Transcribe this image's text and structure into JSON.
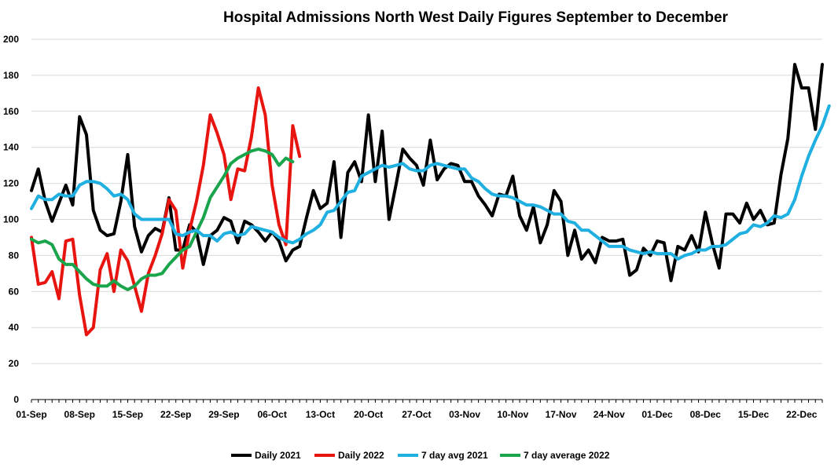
{
  "chart_data": {
    "type": "line",
    "title": "Hospital Admissions North West Daily Figures September to December",
    "ylim": [
      0,
      200
    ],
    "yticks": [
      0,
      20,
      40,
      60,
      80,
      100,
      120,
      140,
      160,
      180,
      200
    ],
    "xlim": [
      0,
      115
    ],
    "xtick_labels": [
      "01-Sep",
      "08-Sep",
      "15-Sep",
      "22-Sep",
      "29-Sep",
      "06-Oct",
      "13-Oct",
      "20-Oct",
      "27-Oct",
      "03-Nov",
      "10-Nov",
      "17-Nov",
      "24-Nov",
      "01-Dec",
      "08-Dec",
      "15-Dec",
      "22-Dec"
    ],
    "grid": "horizontal",
    "legend": "bottom",
    "series": [
      {
        "name": "Daily 2021",
        "color": "#000000",
        "start": 0,
        "values": [
          116,
          128,
          110,
          99,
          109,
          119,
          108,
          157,
          147,
          105,
          94,
          91,
          92,
          110,
          136,
          96,
          82,
          91,
          95,
          93,
          112,
          83,
          83,
          97,
          93,
          75,
          91,
          94,
          101,
          99,
          87,
          99,
          97,
          93,
          88,
          93,
          88,
          77,
          83,
          85,
          101,
          116,
          106,
          109,
          132,
          90,
          126,
          132,
          121,
          158,
          121,
          149,
          100,
          119,
          139,
          134,
          130,
          119,
          144,
          122,
          128,
          131,
          130,
          121,
          121,
          113,
          108,
          102,
          114,
          113,
          124,
          102,
          94,
          107,
          87,
          97,
          116,
          110,
          80,
          94,
          78,
          83,
          76,
          90,
          88,
          88,
          89,
          69,
          72,
          84,
          80,
          88,
          87,
          66,
          85,
          83,
          91,
          82,
          104,
          87,
          73,
          103,
          103,
          98,
          109,
          100,
          105,
          97,
          98,
          125,
          145,
          186,
          173,
          173,
          150,
          186
        ]
      },
      {
        "name": "Daily 2022",
        "color": "#e8140f",
        "start": 0,
        "values": [
          90,
          64,
          65,
          71,
          56,
          88,
          89,
          58,
          36,
          40,
          72,
          81,
          60,
          83,
          77,
          63,
          49,
          70,
          80,
          92,
          111,
          105,
          73,
          94,
          110,
          130,
          158,
          148,
          136,
          111,
          128,
          127,
          146,
          173,
          158,
          119,
          97,
          86,
          152,
          135
        ]
      },
      {
        "name": "7 day avg 2021",
        "color": "#1fafe0",
        "start": 0,
        "values": [
          106,
          113,
          111,
          111,
          114,
          113,
          113,
          119,
          121,
          121,
          120,
          117,
          113,
          114,
          111,
          103,
          100,
          100,
          100,
          100,
          100,
          92,
          91,
          93,
          94,
          91,
          91,
          88,
          92,
          93,
          91,
          92,
          96,
          95,
          94,
          93,
          90,
          88,
          87,
          89,
          92,
          94,
          97,
          104,
          105,
          110,
          115,
          116,
          124,
          126,
          128,
          130,
          129,
          130,
          131,
          128,
          127,
          127,
          130,
          131,
          130,
          129,
          128,
          128,
          123,
          121,
          117,
          114,
          113,
          113,
          112,
          110,
          108,
          108,
          107,
          105,
          103,
          103,
          99,
          98,
          94,
          94,
          91,
          88,
          85,
          85,
          85,
          83,
          82,
          81,
          82,
          81,
          81,
          81,
          78,
          80,
          81,
          83,
          83,
          85,
          85,
          86,
          89,
          92,
          93,
          97,
          96,
          98,
          102,
          101,
          103,
          111,
          124,
          135,
          144,
          152,
          163
        ]
      },
      {
        "name": "7 day average 2022",
        "color": "#1aa44c",
        "start": 0,
        "values": [
          89,
          87,
          88,
          86,
          78,
          75,
          75,
          71,
          67,
          64,
          63,
          63,
          66,
          63,
          61,
          63,
          67,
          69,
          69,
          70,
          75,
          79,
          83,
          85,
          93,
          101,
          112,
          118,
          124,
          131,
          134,
          136,
          138,
          139,
          138,
          136,
          130,
          134,
          132
        ]
      }
    ]
  }
}
